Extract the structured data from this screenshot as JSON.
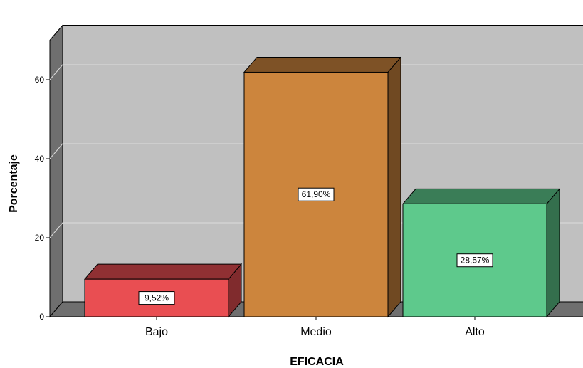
{
  "chart_data": {
    "type": "bar",
    "categories": [
      "Bajo",
      "Medio",
      "Alto"
    ],
    "values": [
      9.52,
      61.9,
      28.57
    ],
    "data_labels": [
      "9,52%",
      "61,90%",
      "28,57%"
    ],
    "colors": [
      "#e94e52",
      "#cc853d",
      "#5ec98c"
    ],
    "xlabel": "EFICACIA",
    "ylabel": "Porcentaje",
    "ylim": [
      0,
      70
    ],
    "yticks": [
      0,
      20,
      40,
      60
    ],
    "grid": true,
    "three_d": true
  }
}
